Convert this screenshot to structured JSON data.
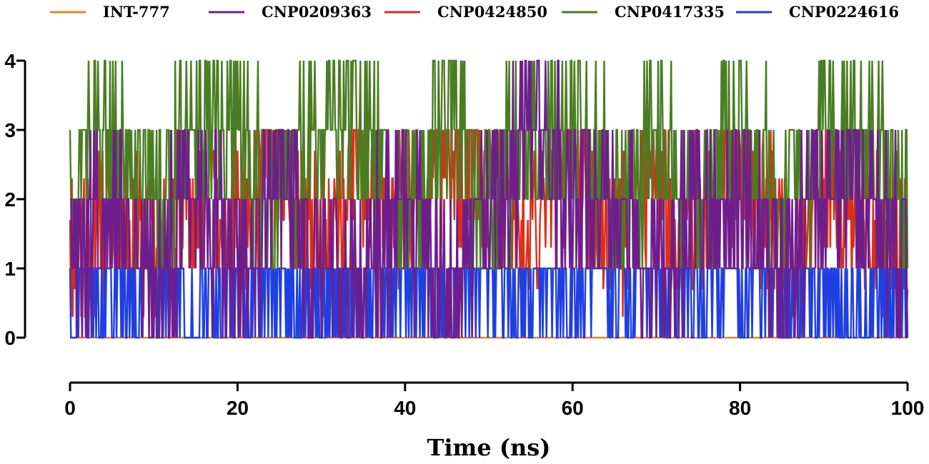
{
  "chart_data": {
    "type": "line",
    "title": "",
    "xlabel": "Time (ns)",
    "ylabel": "",
    "xlim": [
      0,
      100
    ],
    "ylim": [
      0,
      4
    ],
    "xticks": [
      0,
      20,
      40,
      60,
      80,
      100
    ],
    "yticks": [
      0,
      1,
      2,
      3,
      4
    ],
    "legend_position": "top",
    "series": [
      {
        "name": "INT-777",
        "color": "#E8822A",
        "pattern": "constant",
        "levels": [
          0
        ],
        "x": [
          0,
          100
        ],
        "values": [
          0,
          0
        ]
      },
      {
        "name": "CNP0424850",
        "color": "#DC2E18",
        "pattern": "fluctuating",
        "levels": [
          0.3,
          0.7,
          1,
          1.3,
          1.7,
          2,
          2.3,
          2.7,
          3
        ],
        "x": [
          0,
          5,
          10,
          15,
          20,
          25,
          30,
          35,
          40,
          45,
          50,
          55,
          60,
          65,
          70,
          75,
          80,
          85,
          90,
          95,
          100
        ],
        "values": [
          1.3,
          1.7,
          1.3,
          2.3,
          1.7,
          2.7,
          1.3,
          2.3,
          1.7,
          2.7,
          2.3,
          1.7,
          2.7,
          1.3,
          2.3,
          1.7,
          2.7,
          1.3,
          2.3,
          1.7,
          1.3
        ]
      },
      {
        "name": "CNP0224616",
        "color": "#1F3FE0",
        "pattern": "fluctuating",
        "levels": [
          0,
          1
        ],
        "x": [
          0,
          5,
          10,
          15,
          20,
          25,
          30,
          35,
          40,
          45,
          50,
          55,
          60,
          65,
          70,
          75,
          80,
          85,
          90,
          95,
          100
        ],
        "values": [
          0,
          1,
          1,
          0,
          1,
          1,
          0,
          1,
          1,
          1,
          1,
          1,
          1,
          1,
          1,
          1,
          1,
          1,
          1,
          0,
          1
        ]
      },
      {
        "name": "CNP0417335",
        "color": "#4A7D23",
        "pattern": "fluctuating",
        "levels": [
          0,
          1,
          2,
          3,
          4
        ],
        "x": [
          0,
          5,
          10,
          15,
          20,
          25,
          30,
          35,
          40,
          45,
          50,
          55,
          60,
          65,
          70,
          75,
          80,
          85,
          90,
          95,
          100
        ],
        "values": [
          2,
          3,
          2,
          3,
          3,
          2,
          3,
          3,
          2,
          3,
          2,
          3,
          3,
          2,
          3,
          2,
          3,
          2,
          3,
          3,
          2
        ]
      },
      {
        "name": "CNP0209363",
        "color": "#6E1E8C",
        "pattern": "fluctuating",
        "levels": [
          0,
          1,
          2,
          3,
          4
        ],
        "x": [
          0,
          5,
          10,
          15,
          20,
          25,
          30,
          35,
          40,
          45,
          50,
          55,
          60,
          65,
          70,
          75,
          80,
          85,
          90,
          95,
          100
        ],
        "values": [
          1,
          2,
          1,
          2,
          1,
          2,
          1,
          1,
          2,
          1,
          2,
          3,
          2,
          2,
          1,
          2,
          2,
          1,
          2,
          2,
          1
        ]
      }
    ],
    "legend_order": [
      "INT-777",
      "CNP0209363",
      "CNP0424850",
      "CNP0417335",
      "CNP0224616"
    ]
  }
}
